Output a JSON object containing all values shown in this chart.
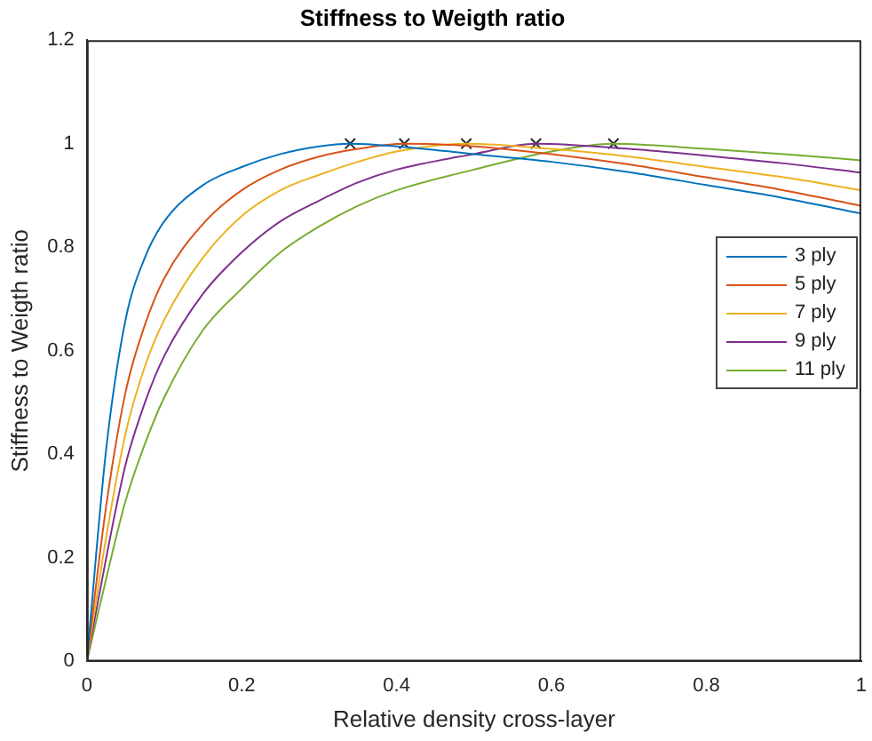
{
  "chart_data": {
    "type": "line",
    "title": "Stiffness to Weigth ratio",
    "xlabel": "Relative density cross-layer",
    "ylabel": "Stiffness to Weigth ratio",
    "xlim": [
      0,
      1
    ],
    "xticks": [
      0,
      0.2,
      0.4,
      0.6,
      0.8,
      1
    ],
    "ylim": [
      0,
      1.2
    ],
    "yticks": [
      0,
      0.2,
      0.4,
      0.6,
      0.8,
      1,
      1.2
    ],
    "grid": false,
    "legend": "right",
    "marker": "none",
    "line_style": "solid",
    "series": [
      {
        "name": "3 ply",
        "color": "#0072bd",
        "x": [
          0,
          0.025,
          0.05,
          0.075,
          0.1,
          0.15,
          0.2,
          0.25,
          0.3,
          0.34,
          0.4,
          0.5,
          0.6,
          0.7,
          0.8,
          0.9,
          1
        ],
        "values": [
          0,
          0.41,
          0.66,
          0.78,
          0.85,
          0.92,
          0.955,
          0.98,
          0.995,
          1,
          0.995,
          0.98,
          0.965,
          0.945,
          0.92,
          0.895,
          0.865
        ]
      },
      {
        "name": "5 ply",
        "color": "#d95319",
        "x": [
          0,
          0.025,
          0.05,
          0.075,
          0.1,
          0.15,
          0.2,
          0.25,
          0.3,
          0.35,
          0.41,
          0.5,
          0.6,
          0.7,
          0.8,
          0.9,
          1
        ],
        "values": [
          0,
          0.3,
          0.52,
          0.65,
          0.74,
          0.845,
          0.91,
          0.95,
          0.975,
          0.99,
          1,
          0.995,
          0.98,
          0.96,
          0.935,
          0.91,
          0.88
        ]
      },
      {
        "name": "7 ply",
        "color": "#edb120",
        "x": [
          0,
          0.025,
          0.05,
          0.075,
          0.1,
          0.15,
          0.2,
          0.25,
          0.3,
          0.35,
          0.4,
          0.49,
          0.6,
          0.7,
          0.8,
          0.9,
          1
        ],
        "values": [
          0,
          0.24,
          0.44,
          0.57,
          0.66,
          0.78,
          0.86,
          0.91,
          0.94,
          0.965,
          0.985,
          1,
          0.99,
          0.975,
          0.955,
          0.935,
          0.91
        ]
      },
      {
        "name": "9 ply",
        "color": "#7e2f8e",
        "x": [
          0,
          0.025,
          0.05,
          0.075,
          0.1,
          0.15,
          0.2,
          0.25,
          0.3,
          0.35,
          0.4,
          0.5,
          0.58,
          0.7,
          0.8,
          0.9,
          1
        ],
        "values": [
          0,
          0.2,
          0.38,
          0.5,
          0.59,
          0.71,
          0.79,
          0.85,
          0.89,
          0.925,
          0.95,
          0.98,
          1,
          0.99,
          0.977,
          0.962,
          0.944
        ]
      },
      {
        "name": "11 ply",
        "color": "#77ac30",
        "x": [
          0,
          0.025,
          0.05,
          0.075,
          0.1,
          0.15,
          0.2,
          0.25,
          0.3,
          0.35,
          0.4,
          0.5,
          0.6,
          0.68,
          0.8,
          0.9,
          1
        ],
        "values": [
          0,
          0.16,
          0.31,
          0.42,
          0.51,
          0.64,
          0.72,
          0.79,
          0.84,
          0.88,
          0.91,
          0.95,
          0.985,
          1,
          0.99,
          0.98,
          0.968
        ]
      },
      {
        "type": "scatter",
        "marker": "cross",
        "color": "#262626",
        "x": [
          0.34,
          0.41,
          0.49,
          0.58,
          0.68
        ],
        "values": [
          1,
          1,
          1,
          1,
          1
        ]
      }
    ]
  }
}
